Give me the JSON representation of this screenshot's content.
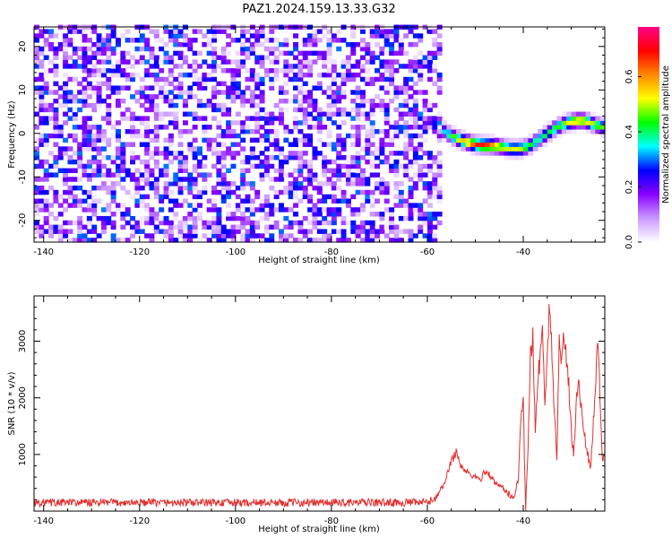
{
  "title": "PAZ1.2024.159.13.33.G32",
  "chart_data": [
    {
      "type": "heatmap",
      "name": "spectrogram",
      "xlabel": "Height of straight line (km)",
      "ylabel": "Frequency (Hz)",
      "xlim": [
        -142,
        -23
      ],
      "ylim": [
        -25,
        24.5
      ],
      "xticks": [
        -140,
        -120,
        -100,
        -80,
        -60,
        -40
      ],
      "yticks": [
        -20,
        -10,
        0,
        10,
        20
      ],
      "colorbar": {
        "label": "Normalized spectral amplitude",
        "range": [
          0,
          0.78
        ],
        "ticks": [
          0.0,
          0.2,
          0.4,
          0.6
        ],
        "colormap": [
          "#ffffff",
          "#cc99ff",
          "#8800ff",
          "#0000ff",
          "#00ffff",
          "#00ff00",
          "#ffff00",
          "#ff8800",
          "#ff0000",
          "#ff0088"
        ]
      },
      "noise_region": {
        "x_range": [
          -142,
          -57
        ],
        "typical_amplitude": 0.08
      },
      "signal_trace": {
        "x": [
          -57,
          -55,
          -53,
          -51,
          -49,
          -47,
          -45,
          -43,
          -41,
          -39,
          -37,
          -35,
          -33,
          -31,
          -29,
          -27,
          -25,
          -23
        ],
        "frequency": [
          1,
          -0.5,
          -1.5,
          -2.2,
          -2.6,
          -2.7,
          -3,
          -3.4,
          -3.5,
          -3,
          -1.5,
          0,
          1.5,
          2.5,
          3,
          3,
          2,
          1.5
        ],
        "amplitude": [
          0.3,
          0.45,
          0.55,
          0.62,
          0.7,
          0.66,
          0.55,
          0.5,
          0.52,
          0.45,
          0.4,
          0.42,
          0.45,
          0.5,
          0.6,
          0.55,
          0.5,
          0.45
        ]
      }
    },
    {
      "type": "line",
      "name": "snr",
      "xlabel": "Height of straight line (km)",
      "ylabel": "SNR (10 * v/v)",
      "xlim": [
        -142,
        -23
      ],
      "ylim": [
        0,
        3800
      ],
      "xticks": [
        -140,
        -120,
        -100,
        -80,
        -60,
        -40
      ],
      "yticks": [
        1000,
        2000,
        3000
      ],
      "color": "#e03030",
      "x": [
        -142,
        -100,
        -60,
        -58,
        -57,
        -56,
        -55,
        -54,
        -53,
        -52,
        -51,
        -50,
        -49,
        -48,
        -47,
        -46,
        -45,
        -44,
        -43,
        -42,
        -41,
        -40.5,
        -40,
        -39.5,
        -39,
        -38.5,
        -38,
        -37.5,
        -37,
        -36.5,
        -36,
        -35.5,
        -35,
        -34.5,
        -34,
        -33.5,
        -33,
        -32.5,
        -32,
        -31.5,
        -31,
        -30.5,
        -30,
        -29.5,
        -29,
        -28.5,
        -28,
        -27.5,
        -27,
        -26.5,
        -26,
        -25.5,
        -25,
        -24.5,
        -24,
        -23.5,
        -23
      ],
      "y": [
        150,
        150,
        150,
        250,
        400,
        600,
        900,
        1050,
        800,
        700,
        650,
        600,
        550,
        700,
        650,
        500,
        450,
        400,
        300,
        200,
        600,
        1600,
        1900,
        0,
        1200,
        2900,
        3000,
        1500,
        2200,
        2800,
        3300,
        1800,
        2600,
        3750,
        2800,
        1800,
        900,
        2900,
        2700,
        3200,
        2600,
        2200,
        1400,
        1000,
        1800,
        2400,
        1900,
        1500,
        1200,
        1000,
        700,
        1400,
        2200,
        2850,
        2100,
        900,
        1000
      ]
    }
  ]
}
